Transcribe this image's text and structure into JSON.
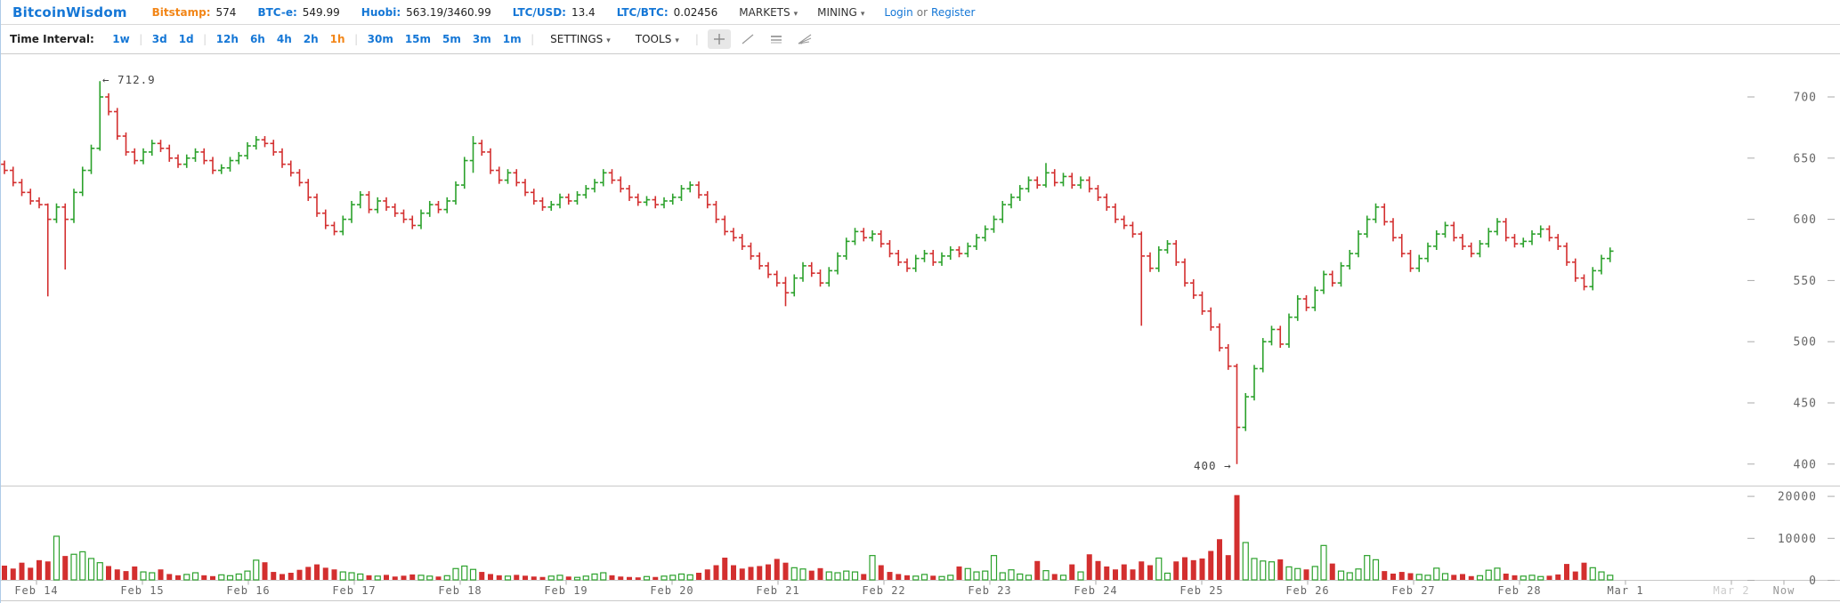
{
  "header": {
    "brand": "BitcoinWisdom",
    "tickers": [
      {
        "label": "Bitstamp:",
        "value": "574",
        "label_color": "#f28618"
      },
      {
        "label": "BTC-e:",
        "value": "549.99",
        "label_color": "#1577d6"
      },
      {
        "label": "Huobi:",
        "value": "563.19/3460.99",
        "label_color": "#1577d6"
      },
      {
        "label": "LTC/USD:",
        "value": "13.4",
        "label_color": "#1577d6"
      },
      {
        "label": "LTC/BTC:",
        "value": "0.02456",
        "label_color": "#1577d6"
      }
    ],
    "menus": [
      {
        "label": "MARKETS"
      },
      {
        "label": "MINING"
      }
    ],
    "auth": {
      "login": "Login",
      "or": "or",
      "register": "Register"
    }
  },
  "toolbar": {
    "time_interval_label": "Time Interval:",
    "intervals": [
      "1w",
      "3d",
      "1d",
      "12h",
      "6h",
      "4h",
      "2h",
      "1h",
      "30m",
      "15m",
      "5m",
      "3m",
      "1m"
    ],
    "active_interval": "1h",
    "separator_after_indexes": [
      0,
      2,
      7,
      12
    ],
    "settings_label": "SETTINGS",
    "tools_label": "TOOLS",
    "link_color": "#1577d6",
    "active_color": "#f28618"
  },
  "chart_data": {
    "type": "ohlc-with-volume",
    "interval": "1h",
    "title": "",
    "price_axis": {
      "ticks": [
        700,
        650,
        600,
        550,
        500,
        450,
        400
      ],
      "range": [
        395,
        715
      ]
    },
    "volume_axis": {
      "ticks": [
        20000,
        10000,
        0
      ],
      "range": [
        0,
        21000
      ]
    },
    "date_ticks": [
      "Feb 14",
      "Feb 15",
      "Feb 16",
      "Feb 17",
      "Feb 18",
      "Feb 19",
      "Feb 20",
      "Feb 21",
      "Feb 22",
      "Feb 23",
      "Feb 24",
      "Feb 25",
      "Feb 26",
      "Feb 27",
      "Feb 28",
      "Mar 1"
    ],
    "future_tick": "Mar 2",
    "now_label": "Now",
    "annotations": {
      "high": {
        "text": "← 712.9",
        "price": 712.9
      },
      "low": {
        "text": "400 →",
        "price": 400
      }
    },
    "colors": {
      "up": "#2ba12b",
      "down": "#d32f2f",
      "axis_text": "#666666",
      "tick_dash": "#aaaaaa",
      "future_text": "#cccccc",
      "now_text": "#999999"
    },
    "candles": {
      "first_open": 645,
      "default_wick": 3,
      "closes": [
        640,
        630,
        622,
        615,
        612,
        600,
        610,
        600,
        622,
        640,
        658,
        700,
        688,
        668,
        655,
        648,
        655,
        662,
        658,
        650,
        645,
        650,
        655,
        648,
        640,
        642,
        648,
        652,
        660,
        665,
        662,
        655,
        645,
        638,
        630,
        618,
        605,
        595,
        590,
        600,
        612,
        620,
        608,
        615,
        610,
        605,
        600,
        595,
        605,
        612,
        608,
        615,
        628,
        648,
        662,
        655,
        640,
        632,
        638,
        630,
        622,
        615,
        610,
        612,
        618,
        615,
        620,
        625,
        630,
        638,
        632,
        625,
        618,
        614,
        616,
        612,
        615,
        618,
        625,
        628,
        620,
        612,
        600,
        590,
        585,
        578,
        570,
        562,
        555,
        548,
        540,
        552,
        562,
        556,
        548,
        558,
        570,
        582,
        590,
        585,
        588,
        580,
        572,
        565,
        560,
        568,
        572,
        565,
        570,
        575,
        572,
        578,
        585,
        592,
        600,
        612,
        618,
        625,
        632,
        628,
        638,
        630,
        635,
        628,
        632,
        625,
        618,
        610,
        600,
        595,
        588,
        570,
        560,
        575,
        580,
        565,
        548,
        538,
        525,
        512,
        495,
        480,
        430,
        455,
        478,
        500,
        510,
        498,
        520,
        535,
        528,
        542,
        555,
        548,
        562,
        572,
        588,
        600,
        610,
        598,
        585,
        572,
        560,
        568,
        578,
        588,
        595,
        585,
        578,
        572,
        580,
        590,
        598,
        585,
        580,
        582,
        588,
        592,
        585,
        578,
        565,
        552,
        545,
        558,
        568,
        574
      ],
      "volumes": [
        3500,
        2800,
        4200,
        3000,
        4800,
        4500,
        10500,
        5800,
        6200,
        6800,
        5200,
        4200,
        3400,
        2600,
        2200,
        3300,
        2000,
        1800,
        2600,
        1500,
        1200,
        1400,
        1800,
        1200,
        1000,
        1300,
        1100,
        1500,
        2200,
        4800,
        4300,
        2000,
        1500,
        1800,
        2500,
        3200,
        3800,
        3000,
        2600,
        2000,
        1800,
        1500,
        1200,
        1000,
        1300,
        900,
        1100,
        1400,
        1200,
        1000,
        900,
        1100,
        2800,
        3400,
        2600,
        2000,
        1500,
        1200,
        1000,
        1300,
        1100,
        900,
        800,
        1000,
        1200,
        900,
        700,
        1000,
        1500,
        1800,
        1200,
        900,
        800,
        700,
        900,
        800,
        1000,
        1200,
        1500,
        1300,
        1800,
        2600,
        3600,
        5400,
        3600,
        2800,
        3200,
        3400,
        3800,
        5100,
        4200,
        3000,
        2700,
        2300,
        2900,
        2000,
        1800,
        2200,
        2000,
        1500,
        5900,
        3600,
        2000,
        1500,
        1200,
        1000,
        1400,
        1100,
        900,
        1200,
        3300,
        2800,
        2000,
        2200,
        5900,
        1800,
        2500,
        1500,
        1200,
        4600,
        2300,
        1500,
        1200,
        3800,
        2000,
        6200,
        4600,
        3300,
        2600,
        3800,
        2600,
        4500,
        3600,
        5300,
        1700,
        4500,
        5500,
        4800,
        5200,
        7000,
        9800,
        6000,
        20300,
        9000,
        5200,
        4600,
        4400,
        5000,
        3200,
        2800,
        2600,
        3300,
        8300,
        4000,
        2200,
        1800,
        2700,
        5900,
        4900,
        2200,
        1600,
        2000,
        1700,
        1400,
        1200,
        2900,
        1600,
        1300,
        1500,
        1000,
        1100,
        2400,
        2900,
        1600,
        1200,
        1000,
        1200,
        900,
        1100,
        1400,
        3900,
        2100,
        4200,
        3000,
        2000,
        1200
      ],
      "wick_overrides": {
        "5": [
          613,
          537
        ],
        "7": [
          613,
          559
        ],
        "11": [
          712.9,
          656
        ],
        "54": [
          668,
          638
        ],
        "90": [
          553,
          529
        ],
        "120": [
          646,
          626
        ],
        "131": [
          590,
          513
        ],
        "142": [
          482,
          400
        ]
      }
    }
  }
}
